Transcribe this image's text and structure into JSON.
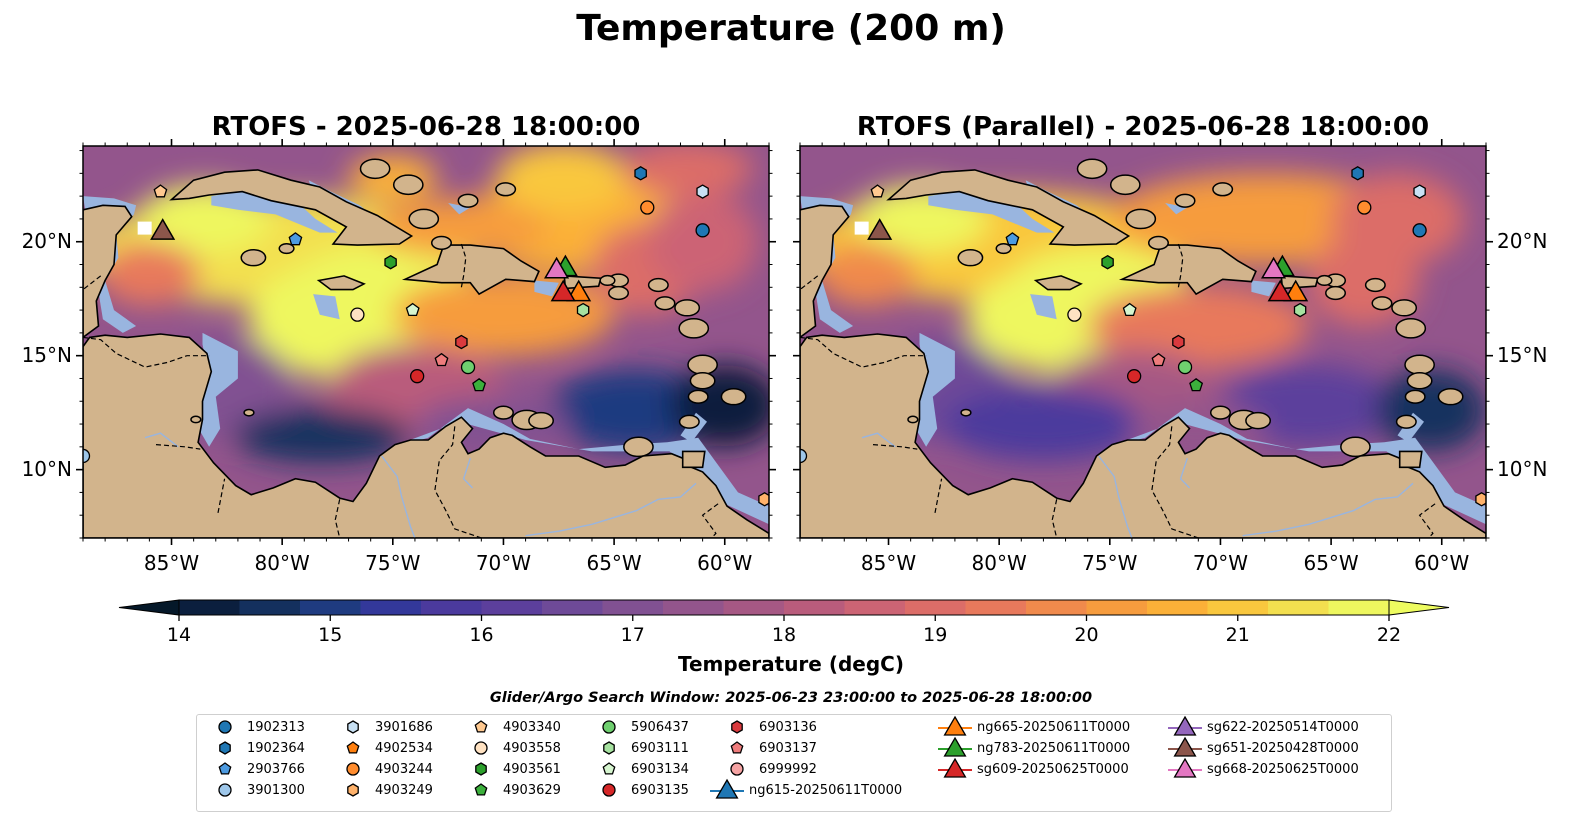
{
  "figure": {
    "title": "Temperature (200 m)",
    "panels": [
      {
        "title": "RTOFS - 2025-06-28 18:00:00"
      },
      {
        "title": "RTOFS (Parallel) - 2025-06-28 18:00:00"
      }
    ],
    "colorbar": {
      "label": "Temperature (degC)",
      "ticks": [
        "14",
        "15",
        "16",
        "17",
        "18",
        "19",
        "20",
        "21",
        "22"
      ],
      "min": 14,
      "max": 22,
      "extend": "both",
      "colors": [
        "#0b1f3e",
        "#14305e",
        "#1f3b80",
        "#33389a",
        "#4b3a9d",
        "#5c3f9c",
        "#6e4a98",
        "#815192",
        "#93558c",
        "#a65884",
        "#b95c7c",
        "#cc6474",
        "#dc6d68",
        "#e8795c",
        "#f08a4c",
        "#f69c3e",
        "#fbb038",
        "#f9c73e",
        "#f3df4f",
        "#eef75f"
      ]
    },
    "search_window": "Glider/Argo Search Window: 2025-06-23 23:00:00 to 2025-06-28 18:00:00",
    "lon_ticks": [
      "85°W",
      "80°W",
      "75°W",
      "70°W",
      "65°W",
      "60°W"
    ],
    "lat_ticks": [
      "20°N",
      "15°N",
      "10°N"
    ]
  },
  "legend": {
    "argo": [
      {
        "id": "1902313",
        "marker": "circle",
        "color": "#1f77b4"
      },
      {
        "id": "1902364",
        "marker": "hexagon",
        "color": "#1f77b4"
      },
      {
        "id": "2903766",
        "marker": "pentagon",
        "color": "#4c9ae0"
      },
      {
        "id": "3901300",
        "marker": "circle",
        "color": "#9ec7ea"
      },
      {
        "id": "3901686",
        "marker": "hexagon",
        "color": "#c8e1f4"
      },
      {
        "id": "4902534",
        "marker": "pentagon",
        "color": "#ff7f0e"
      },
      {
        "id": "4903244",
        "marker": "circle",
        "color": "#ff8c2e"
      },
      {
        "id": "4903249",
        "marker": "hexagon",
        "color": "#ffb26b"
      },
      {
        "id": "4903340",
        "marker": "pentagon",
        "color": "#ffc990"
      },
      {
        "id": "4903558",
        "marker": "circle",
        "color": "#ffe2c2"
      },
      {
        "id": "4903561",
        "marker": "hexagon",
        "color": "#2ca02c"
      },
      {
        "id": "4903629",
        "marker": "pentagon",
        "color": "#3cb03c"
      },
      {
        "id": "5906437",
        "marker": "circle",
        "color": "#6fcf6f"
      },
      {
        "id": "6903111",
        "marker": "hexagon",
        "color": "#a6e2a0"
      },
      {
        "id": "6903134",
        "marker": "pentagon",
        "color": "#d6f5cf"
      },
      {
        "id": "6903135",
        "marker": "circle",
        "color": "#d62728"
      },
      {
        "id": "6903136",
        "marker": "hexagon",
        "color": "#d93a3e"
      },
      {
        "id": "6903137",
        "marker": "pentagon",
        "color": "#ee7c7c"
      },
      {
        "id": "6999992",
        "marker": "circle",
        "color": "#f5a3a3"
      }
    ],
    "gliders": [
      {
        "id": "ng615-20250611T0000",
        "color": "#1f77b4"
      },
      {
        "id": "ng665-20250611T0000",
        "color": "#ff7f0e"
      },
      {
        "id": "ng783-20250611T0000",
        "color": "#2ca02c"
      },
      {
        "id": "sg609-20250625T0000",
        "color": "#d62728"
      },
      {
        "id": "sg622-20250514T0000",
        "color": "#9467bd"
      },
      {
        "id": "sg651-20250428T0000",
        "color": "#8c564b"
      },
      {
        "id": "sg668-20250625T0000",
        "color": "#e377c2"
      }
    ]
  }
}
